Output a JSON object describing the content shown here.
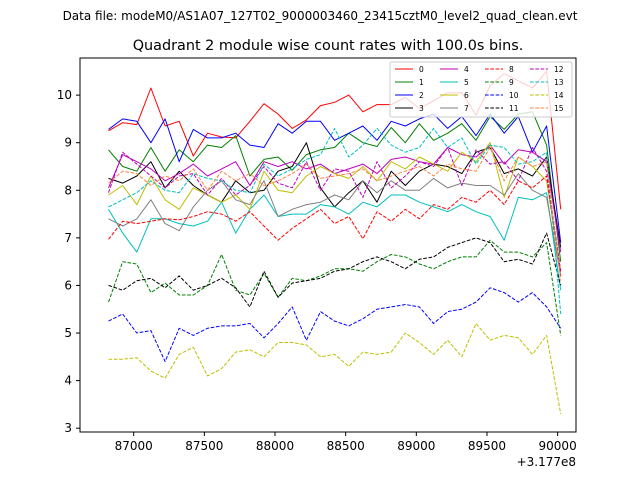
{
  "figure": {
    "suptitle": "Data file: modeM0/AS1A07_127T02_9000003460_23415cztM0_level2_quad_clean.evt",
    "title": "Quadrant 2 module wise count rates with 100.0s bins.",
    "x_offset_label": "+3.177e8"
  },
  "chart_data": {
    "type": "line",
    "title": "Quadrant 2 module wise count rates with 100.0s bins.",
    "xlabel": "",
    "ylabel": "",
    "x_offset": 317700000,
    "xlim": [
      86620,
      90130
    ],
    "ylim": [
      2.92,
      10.78
    ],
    "grid": false,
    "legend_position": "top-right",
    "x_ticks": [
      87000,
      87500,
      88000,
      88500,
      89000,
      89500,
      90000
    ],
    "x_tick_labels": [
      "87000",
      "87500",
      "88000",
      "88500",
      "89000",
      "89500",
      "90000"
    ],
    "y_ticks": [
      3,
      4,
      5,
      6,
      7,
      8,
      9,
      10
    ],
    "y_tick_labels": [
      "3",
      "4",
      "5",
      "6",
      "7",
      "8",
      "9",
      "10"
    ],
    "x": [
      86822,
      86922,
      87022,
      87122,
      87222,
      87322,
      87422,
      87522,
      87622,
      87722,
      87822,
      87922,
      88022,
      88122,
      88222,
      88322,
      88422,
      88522,
      88622,
      88722,
      88822,
      88922,
      89022,
      89122,
      89222,
      89322,
      89422,
      89522,
      89622,
      89722,
      89822,
      89922,
      90022
    ],
    "series": [
      {
        "name": "0",
        "color": "#ff0000",
        "dash": "solid",
        "values": [
          9.25,
          9.42,
          9.38,
          10.15,
          9.35,
          9.45,
          8.72,
          9.2,
          9.12,
          9.1,
          9.45,
          9.82,
          9.6,
          9.3,
          9.48,
          9.78,
          9.85,
          10.0,
          9.65,
          9.8,
          9.8,
          9.95,
          9.72,
          9.88,
          10.05,
          10.05,
          9.58,
          10.2,
          10.45,
          10.3,
          10.15,
          10.5,
          7.6
        ]
      },
      {
        "name": "1",
        "color": "#008000",
        "dash": "solid",
        "values": [
          8.85,
          8.5,
          8.4,
          8.9,
          8.4,
          8.85,
          8.6,
          8.95,
          8.9,
          9.15,
          8.3,
          8.65,
          8.7,
          8.42,
          8.75,
          8.85,
          8.9,
          9.2,
          9.0,
          8.92,
          9.32,
          9.0,
          9.4,
          9.05,
          9.2,
          9.4,
          9.05,
          9.55,
          9.28,
          9.6,
          9.65,
          8.95,
          6.5
        ]
      },
      {
        "name": "2",
        "color": "#0000ff",
        "dash": "solid",
        "values": [
          9.28,
          9.5,
          9.45,
          9.0,
          9.5,
          8.6,
          9.28,
          9.1,
          9.1,
          9.2,
          8.95,
          8.9,
          9.4,
          9.2,
          9.45,
          9.45,
          9.05,
          9.2,
          9.35,
          9.05,
          9.45,
          9.35,
          9.5,
          9.6,
          9.3,
          9.55,
          9.15,
          9.6,
          9.2,
          9.55,
          8.8,
          9.35,
          6.9
        ]
      },
      {
        "name": "3",
        "color": "#000000",
        "dash": "solid",
        "values": [
          8.25,
          8.15,
          8.3,
          8.6,
          8.05,
          8.4,
          8.1,
          7.9,
          7.75,
          8.2,
          7.95,
          8.0,
          8.4,
          8.5,
          9.0,
          8.05,
          7.65,
          7.95,
          8.2,
          7.75,
          8.4,
          8.1,
          8.4,
          8.55,
          8.5,
          8.35,
          8.8,
          8.9,
          8.35,
          8.45,
          8.3,
          8.7,
          6.8
        ]
      },
      {
        "name": "4",
        "color": "#bf00bf",
        "dash": "solid",
        "values": [
          8.05,
          8.75,
          8.6,
          8.45,
          8.2,
          8.35,
          8.55,
          8.3,
          8.45,
          8.6,
          8.1,
          8.6,
          8.5,
          8.6,
          8.45,
          8.55,
          8.35,
          8.45,
          8.55,
          8.35,
          8.65,
          8.7,
          8.6,
          8.55,
          8.9,
          8.75,
          8.7,
          8.95,
          8.55,
          8.85,
          8.8,
          8.6,
          6.7
        ]
      },
      {
        "name": "5",
        "color": "#00bfbf",
        "dash": "solid",
        "values": [
          7.6,
          7.1,
          6.7,
          7.4,
          7.4,
          7.3,
          7.25,
          7.35,
          7.75,
          7.1,
          7.6,
          7.9,
          7.45,
          7.5,
          7.5,
          7.7,
          7.65,
          7.5,
          7.75,
          7.65,
          7.9,
          7.9,
          7.75,
          7.65,
          7.55,
          7.7,
          7.55,
          7.45,
          6.95,
          7.85,
          7.8,
          7.95,
          5.9
        ]
      },
      {
        "name": "6",
        "color": "#bfbf00",
        "dash": "solid",
        "values": [
          7.9,
          8.1,
          7.7,
          8.3,
          7.8,
          7.6,
          8.05,
          7.9,
          7.75,
          7.9,
          7.6,
          8.4,
          8.0,
          7.95,
          8.3,
          8.5,
          8.35,
          8.25,
          8.5,
          8.2,
          8.6,
          8.45,
          8.7,
          8.55,
          8.4,
          8.8,
          8.6,
          9.0,
          7.85,
          8.7,
          8.5,
          8.2,
          6.3
        ]
      },
      {
        "name": "7",
        "color": "#808080",
        "dash": "solid",
        "values": [
          7.4,
          7.25,
          7.4,
          7.8,
          7.3,
          7.15,
          7.65,
          8.0,
          8.2,
          7.8,
          7.7,
          8.2,
          7.45,
          7.6,
          7.7,
          7.75,
          7.9,
          7.8,
          8.2,
          7.95,
          8.2,
          8.0,
          8.0,
          8.25,
          8.05,
          8.15,
          8.1,
          8.1,
          7.9,
          8.35,
          8.0,
          7.85,
          6.2
        ]
      },
      {
        "name": "8",
        "color": "#ff0000",
        "dash": "dashed",
        "values": [
          6.97,
          7.35,
          7.3,
          7.35,
          7.4,
          7.38,
          7.45,
          7.55,
          7.5,
          7.35,
          7.55,
          7.25,
          6.95,
          7.2,
          7.4,
          7.6,
          7.3,
          7.45,
          6.98,
          7.55,
          7.35,
          7.6,
          7.4,
          7.7,
          7.6,
          7.85,
          7.75,
          8.0,
          7.7,
          8.2,
          8.05,
          8.3,
          6.2
        ]
      },
      {
        "name": "9",
        "color": "#008000",
        "dash": "dashed",
        "values": [
          5.65,
          6.5,
          6.45,
          5.85,
          6.05,
          5.8,
          5.8,
          6.0,
          6.65,
          5.9,
          5.8,
          6.25,
          5.75,
          6.15,
          6.1,
          6.2,
          6.35,
          6.35,
          6.3,
          6.5,
          6.65,
          6.6,
          6.45,
          6.35,
          6.5,
          6.6,
          6.6,
          6.95,
          6.7,
          6.7,
          6.6,
          6.9,
          4.95
        ]
      },
      {
        "name": "10",
        "color": "#0000ff",
        "dash": "dashed",
        "values": [
          5.25,
          5.4,
          5.0,
          5.05,
          4.4,
          5.1,
          4.95,
          5.1,
          5.15,
          5.15,
          5.2,
          4.9,
          5.2,
          5.55,
          4.85,
          5.45,
          5.25,
          5.15,
          5.3,
          5.5,
          5.55,
          5.6,
          5.55,
          5.2,
          5.45,
          5.5,
          5.65,
          5.95,
          5.85,
          5.65,
          5.85,
          5.55,
          5.1
        ]
      },
      {
        "name": "11",
        "color": "#000000",
        "dash": "dashed",
        "values": [
          6.0,
          5.9,
          6.1,
          6.15,
          5.95,
          6.2,
          5.9,
          6.0,
          6.15,
          5.95,
          5.55,
          6.3,
          5.75,
          6.05,
          6.1,
          6.15,
          6.3,
          6.35,
          6.5,
          6.6,
          6.5,
          6.35,
          6.55,
          6.6,
          6.8,
          6.9,
          7.0,
          6.9,
          6.5,
          6.55,
          6.45,
          7.1,
          6.0
        ]
      },
      {
        "name": "12",
        "color": "#bf00bf",
        "dash": "dashed",
        "values": [
          7.95,
          8.8,
          8.55,
          8.3,
          8.05,
          8.3,
          8.35,
          7.9,
          8.25,
          7.9,
          8.1,
          8.5,
          8.15,
          8.05,
          8.6,
          8.0,
          8.45,
          8.4,
          7.85,
          8.6,
          8.05,
          8.3,
          8.6,
          8.5,
          8.9,
          8.1,
          8.85,
          8.55,
          8.6,
          8.2,
          8.9,
          8.4,
          6.3
        ]
      },
      {
        "name": "13",
        "color": "#00bfbf",
        "dash": "dashed",
        "values": [
          7.65,
          7.8,
          7.95,
          8.2,
          8.0,
          7.95,
          8.35,
          8.25,
          8.2,
          8.0,
          7.95,
          8.55,
          8.3,
          8.45,
          8.65,
          8.75,
          9.3,
          8.7,
          8.95,
          9.3,
          8.95,
          8.8,
          8.9,
          9.3,
          8.9,
          9.1,
          8.55,
          8.95,
          8.9,
          8.55,
          8.6,
          8.8,
          5.4
        ]
      },
      {
        "name": "14",
        "color": "#bfbf00",
        "dash": "dashed",
        "values": [
          4.45,
          4.45,
          4.48,
          4.2,
          4.05,
          4.55,
          4.7,
          4.1,
          4.25,
          4.6,
          4.65,
          4.5,
          4.8,
          4.8,
          4.75,
          4.5,
          4.55,
          4.3,
          4.6,
          4.55,
          4.6,
          5.0,
          4.8,
          4.55,
          4.85,
          4.5,
          5.2,
          4.85,
          4.95,
          4.9,
          4.55,
          4.95,
          3.3
        ]
      },
      {
        "name": "15",
        "color": "#ff8040",
        "dash": "dashed",
        "values": [
          8.15,
          8.4,
          8.35,
          8.1,
          8.3,
          8.2,
          8.45,
          8.0,
          8.4,
          8.2,
          8.35,
          8.1,
          8.2,
          8.35,
          8.55,
          8.25,
          8.3,
          8.35,
          8.45,
          8.2,
          8.3,
          8.4,
          8.5,
          8.3,
          8.55,
          8.45,
          8.4,
          8.9,
          8.2,
          8.7,
          8.5,
          8.6,
          6.1
        ]
      }
    ]
  }
}
